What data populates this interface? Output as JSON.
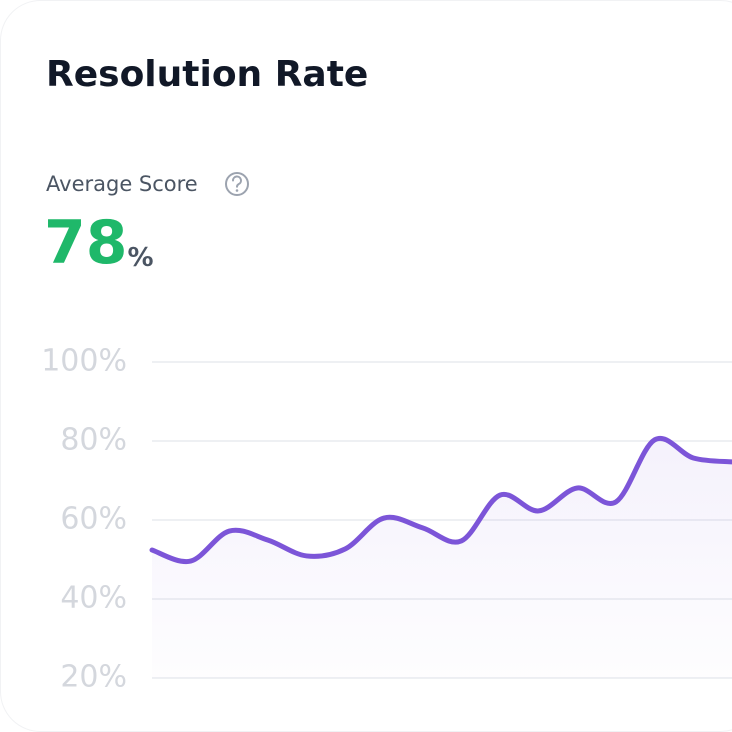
{
  "chart_data": {
    "type": "line",
    "title": "Resolution Rate",
    "metric_label": "Average Score",
    "metric_value": 78,
    "metric_unit": "%",
    "categories": [
      null,
      null,
      null,
      null,
      null,
      null,
      null,
      null,
      null,
      null,
      null,
      null,
      null,
      null,
      null,
      null
    ],
    "values": [
      52.4,
      49.6,
      57.2,
      54.9,
      50.9,
      52.7,
      60.5,
      58.0,
      54.7,
      66.3,
      62.3,
      68.1,
      64.6,
      80.3,
      75.7,
      74.7
    ],
    "color": "#7c55d8",
    "ylim": [
      20,
      100
    ],
    "yticks": [
      {
        "value": 20,
        "label": "20%"
      },
      {
        "value": 40,
        "label": "40%"
      },
      {
        "value": 60,
        "label": "60%"
      },
      {
        "value": 80,
        "label": "80%"
      },
      {
        "value": 100,
        "label": "100%"
      }
    ],
    "grid": true
  }
}
